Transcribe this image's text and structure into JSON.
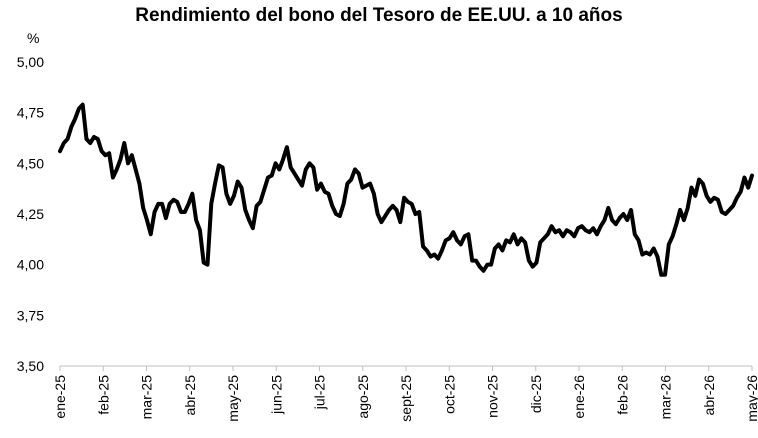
{
  "chart_data": {
    "type": "line",
    "title": "Rendimiento del bono del Tesoro de EE.UU. a 10 años",
    "ylabel": "%",
    "xlabel": "",
    "ylim": [
      3.5,
      5.0
    ],
    "yticks": [
      "3,50",
      "3,75",
      "4,00",
      "4,25",
      "4,50",
      "4,75",
      "5,00"
    ],
    "ytick_values": [
      3.5,
      3.75,
      4.0,
      4.25,
      4.5,
      4.75,
      5.0
    ],
    "xtick_labels": [
      "ene-25",
      "feb-25",
      "mar-25",
      "abr-25",
      "may-25",
      "jun-25",
      "jul-25",
      "ago-25",
      "sept-25",
      "oct-25",
      "nov-25",
      "dic-25",
      "ene-26",
      "feb-26",
      "mar-26",
      "abr-26",
      "may-26"
    ],
    "grid": false,
    "line_color": "#000000",
    "series": [
      {
        "values": [
          4.56,
          4.6,
          4.62,
          4.68,
          4.72,
          4.77,
          4.79,
          4.62,
          4.6,
          4.63,
          4.62,
          4.56,
          4.54,
          4.55,
          4.43,
          4.47,
          4.52,
          4.6,
          4.5,
          4.54,
          4.47,
          4.4,
          4.28,
          4.22,
          4.15,
          4.26,
          4.3,
          4.3,
          4.23,
          4.3,
          4.32,
          4.31,
          4.26,
          4.26,
          4.3,
          4.35,
          4.22,
          4.17,
          4.01,
          4.0,
          4.3,
          4.4,
          4.49,
          4.48,
          4.35,
          4.3,
          4.34,
          4.41,
          4.38,
          4.27,
          4.22,
          4.18,
          4.29,
          4.31,
          4.37,
          4.43,
          4.44,
          4.5,
          4.47,
          4.52,
          4.58,
          4.48,
          4.45,
          4.42,
          4.39,
          4.47,
          4.5,
          4.48,
          4.37,
          4.4,
          4.36,
          4.35,
          4.29,
          4.25,
          4.24,
          4.3,
          4.4,
          4.42,
          4.47,
          4.45,
          4.38,
          4.39,
          4.4,
          4.35,
          4.25,
          4.21,
          4.24,
          4.27,
          4.29,
          4.27,
          4.21,
          4.33,
          4.31,
          4.3,
          4.25,
          4.26,
          4.09,
          4.07,
          4.04,
          4.05,
          4.03,
          4.07,
          4.12,
          4.13,
          4.16,
          4.12,
          4.1,
          4.14,
          4.15,
          4.02,
          4.02,
          3.99,
          3.97,
          4.0,
          4.0,
          4.08,
          4.1,
          4.07,
          4.12,
          4.11,
          4.15,
          4.1,
          4.13,
          4.11,
          4.02,
          3.99,
          4.01,
          4.11,
          4.13,
          4.15,
          4.19,
          4.16,
          4.17,
          4.14,
          4.17,
          4.16,
          4.14,
          4.18,
          4.19,
          4.17,
          4.16,
          4.18,
          4.15,
          4.19,
          4.22,
          4.28,
          4.22,
          4.2,
          4.23,
          4.25,
          4.22,
          4.27,
          4.15,
          4.12,
          4.05,
          4.06,
          4.05,
          4.08,
          4.04,
          3.95,
          3.95,
          4.1,
          4.14,
          4.2,
          4.27,
          4.22,
          4.28,
          4.38,
          4.34,
          4.42,
          4.4,
          4.34,
          4.31,
          4.33,
          4.32,
          4.26,
          4.25,
          4.27,
          4.29,
          4.33,
          4.36,
          4.43,
          4.38,
          4.44
        ]
      }
    ]
  }
}
